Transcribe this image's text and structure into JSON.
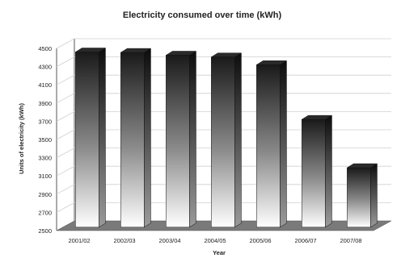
{
  "chart_data": {
    "type": "bar",
    "title": "Electricity consumed over time (kWh)",
    "xlabel": "Year",
    "ylabel": "Units of electricity (kWh)",
    "categories": [
      "2001/02",
      "2002/03",
      "2003/04",
      "2004/05",
      "2005/06",
      "2006/07",
      "2007/08"
    ],
    "values": [
      4460,
      4455,
      4425,
      4405,
      4320,
      3720,
      3190
    ],
    "ylim": [
      2500,
      4500
    ],
    "yticks": [
      2500,
      2700,
      2900,
      3100,
      3300,
      3500,
      3700,
      3900,
      4100,
      4300,
      4500
    ],
    "grid": true,
    "style": "3d-column-gradient",
    "colors": {
      "bar_dark": "#1a1a1a",
      "bar_light": "#ffffff",
      "floor": "#7a7a7a",
      "grid": "#cfcfcf"
    }
  }
}
